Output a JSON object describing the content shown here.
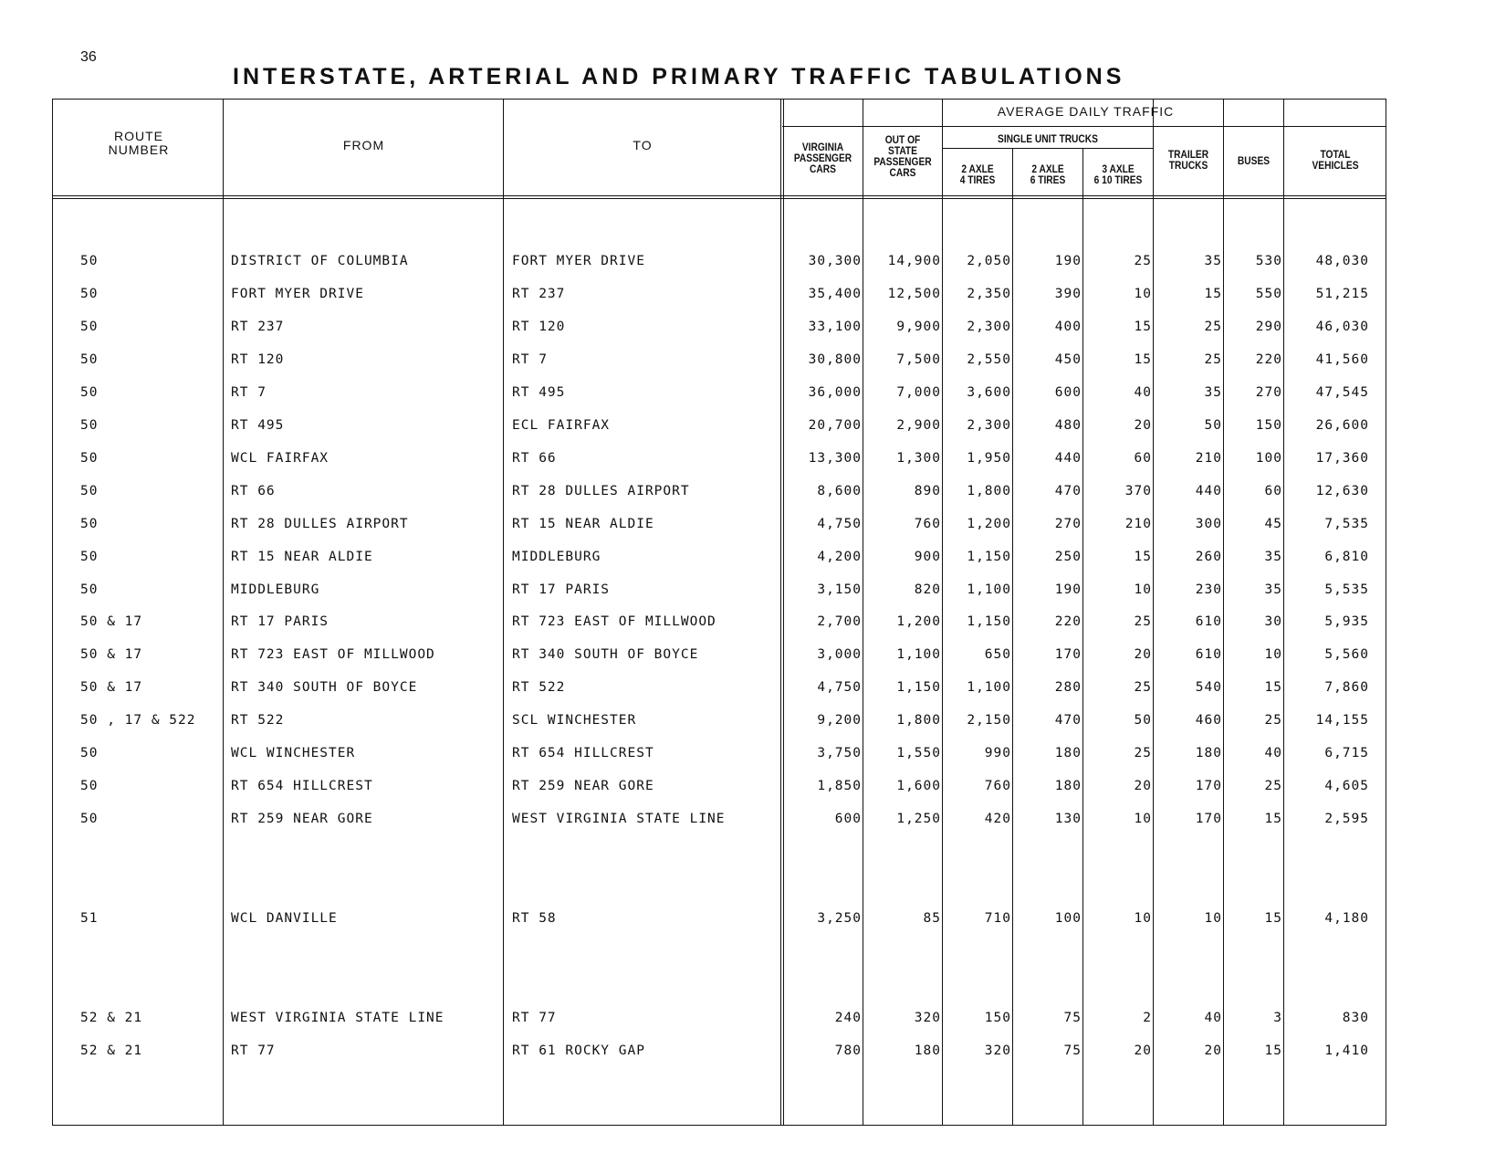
{
  "page_number": "36",
  "title": "INTERSTATE, ARTERIAL AND PRIMARY TRAFFIC TABULATIONS",
  "headers": {
    "route_number": "ROUTE\nNUMBER",
    "from": "FROM",
    "to": "TO",
    "average_daily_traffic": "AVERAGE DAILY TRAFFIC",
    "virginia_passenger_cars": "VIRGINIA\nPASSENGER\nCARS",
    "out_of_state_passenger_cars": "OUT OF\nSTATE\nPASSENGER\nCARS",
    "single_unit_trucks": "SINGLE UNIT TRUCKS",
    "axle2_tires4": "2 AXLE\n4 TIRES",
    "axle2_tires6": "2 AXLE\n6 TIRES",
    "axle3_tires610": "3 AXLE\n6 10 TIRES",
    "trailer_trucks": "TRAILER\nTRUCKS",
    "buses": "BUSES",
    "total_vehicles": "TOTAL\nVEHICLES"
  },
  "rows": [
    {
      "route": "50",
      "from": "DISTRICT OF COLUMBIA",
      "to": "FORT MYER DRIVE",
      "va": "30,300",
      "oos": "14,900",
      "t24": "2,050",
      "t26": "190",
      "t3": "25",
      "trailer": "35",
      "buses": "530",
      "total": "48,030"
    },
    {
      "route": "50",
      "from": "FORT MYER DRIVE",
      "to": "RT 237",
      "va": "35,400",
      "oos": "12,500",
      "t24": "2,350",
      "t26": "390",
      "t3": "10",
      "trailer": "15",
      "buses": "550",
      "total": "51,215"
    },
    {
      "route": "50",
      "from": "RT 237",
      "to": "RT 120",
      "va": "33,100",
      "oos": "9,900",
      "t24": "2,300",
      "t26": "400",
      "t3": "15",
      "trailer": "25",
      "buses": "290",
      "total": "46,030"
    },
    {
      "route": "50",
      "from": "RT 120",
      "to": "RT 7",
      "va": "30,800",
      "oos": "7,500",
      "t24": "2,550",
      "t26": "450",
      "t3": "15",
      "trailer": "25",
      "buses": "220",
      "total": "41,560"
    },
    {
      "route": "50",
      "from": "RT 7",
      "to": "RT 495",
      "va": "36,000",
      "oos": "7,000",
      "t24": "3,600",
      "t26": "600",
      "t3": "40",
      "trailer": "35",
      "buses": "270",
      "total": "47,545"
    },
    {
      "route": "50",
      "from": "RT 495",
      "to": "ECL FAIRFAX",
      "va": "20,700",
      "oos": "2,900",
      "t24": "2,300",
      "t26": "480",
      "t3": "20",
      "trailer": "50",
      "buses": "150",
      "total": "26,600"
    },
    {
      "route": "50",
      "from": "WCL FAIRFAX",
      "to": "RT 66",
      "va": "13,300",
      "oos": "1,300",
      "t24": "1,950",
      "t26": "440",
      "t3": "60",
      "trailer": "210",
      "buses": "100",
      "total": "17,360"
    },
    {
      "route": "50",
      "from": "RT 66",
      "to": "RT 28 DULLES AIRPORT",
      "va": "8,600",
      "oos": "890",
      "t24": "1,800",
      "t26": "470",
      "t3": "370",
      "trailer": "440",
      "buses": "60",
      "total": "12,630"
    },
    {
      "route": "50",
      "from": "RT 28 DULLES AIRPORT",
      "to": "RT 15 NEAR ALDIE",
      "va": "4,750",
      "oos": "760",
      "t24": "1,200",
      "t26": "270",
      "t3": "210",
      "trailer": "300",
      "buses": "45",
      "total": "7,535"
    },
    {
      "route": "50",
      "from": "RT 15 NEAR ALDIE",
      "to": "MIDDLEBURG",
      "va": "4,200",
      "oos": "900",
      "t24": "1,150",
      "t26": "250",
      "t3": "15",
      "trailer": "260",
      "buses": "35",
      "total": "6,810"
    },
    {
      "route": "50",
      "from": "MIDDLEBURG",
      "to": "RT 17 PARIS",
      "va": "3,150",
      "oos": "820",
      "t24": "1,100",
      "t26": "190",
      "t3": "10",
      "trailer": "230",
      "buses": "35",
      "total": "5,535"
    },
    {
      "route": "50 & 17",
      "from": "RT 17 PARIS",
      "to": "RT 723 EAST OF MILLWOOD",
      "va": "2,700",
      "oos": "1,200",
      "t24": "1,150",
      "t26": "220",
      "t3": "25",
      "trailer": "610",
      "buses": "30",
      "total": "5,935"
    },
    {
      "route": "50 & 17",
      "from": "RT 723 EAST OF MILLWOOD",
      "to": "RT 340 SOUTH OF BOYCE",
      "va": "3,000",
      "oos": "1,100",
      "t24": "650",
      "t26": "170",
      "t3": "20",
      "trailer": "610",
      "buses": "10",
      "total": "5,560"
    },
    {
      "route": "50 & 17",
      "from": "RT 340 SOUTH OF BOYCE",
      "to": "RT 522",
      "va": "4,750",
      "oos": "1,150",
      "t24": "1,100",
      "t26": "280",
      "t3": "25",
      "trailer": "540",
      "buses": "15",
      "total": "7,860"
    },
    {
      "route": "50 , 17 & 522",
      "from": "RT 522",
      "to": "SCL WINCHESTER",
      "va": "9,200",
      "oos": "1,800",
      "t24": "2,150",
      "t26": "470",
      "t3": "50",
      "trailer": "460",
      "buses": "25",
      "total": "14,155"
    },
    {
      "route": "50",
      "from": "WCL WINCHESTER",
      "to": "RT 654 HILLCREST",
      "va": "3,750",
      "oos": "1,550",
      "t24": "990",
      "t26": "180",
      "t3": "25",
      "trailer": "180",
      "buses": "40",
      "total": "6,715"
    },
    {
      "route": "50",
      "from": "RT 654 HILLCREST",
      "to": "RT 259 NEAR GORE",
      "va": "1,850",
      "oos": "1,600",
      "t24": "760",
      "t26": "180",
      "t3": "20",
      "trailer": "170",
      "buses": "25",
      "total": "4,605"
    },
    {
      "route": "50",
      "from": "RT 259 NEAR GORE",
      "to": "WEST VIRGINIA STATE LINE",
      "va": "600",
      "oos": "1,250",
      "t24": "420",
      "t26": "130",
      "t3": "10",
      "trailer": "170",
      "buses": "15",
      "total": "2,595"
    },
    {
      "route": "51",
      "from": "WCL DANVILLE",
      "to": "RT 58",
      "va": "3,250",
      "oos": "85",
      "t24": "710",
      "t26": "100",
      "t3": "10",
      "trailer": "10",
      "buses": "15",
      "total": "4,180"
    },
    {
      "route": "52 & 21",
      "from": "WEST VIRGINIA STATE LINE",
      "to": "RT 77",
      "va": "240",
      "oos": "320",
      "t24": "150",
      "t26": "75",
      "t3": "2",
      "trailer": "40",
      "buses": "3",
      "total": "830"
    },
    {
      "route": "52 & 21",
      "from": "RT 77",
      "to": "RT 61 ROCKY GAP",
      "va": "780",
      "oos": "180",
      "t24": "320",
      "t26": "75",
      "t3": "20",
      "trailer": "20",
      "buses": "15",
      "total": "1,410"
    }
  ]
}
